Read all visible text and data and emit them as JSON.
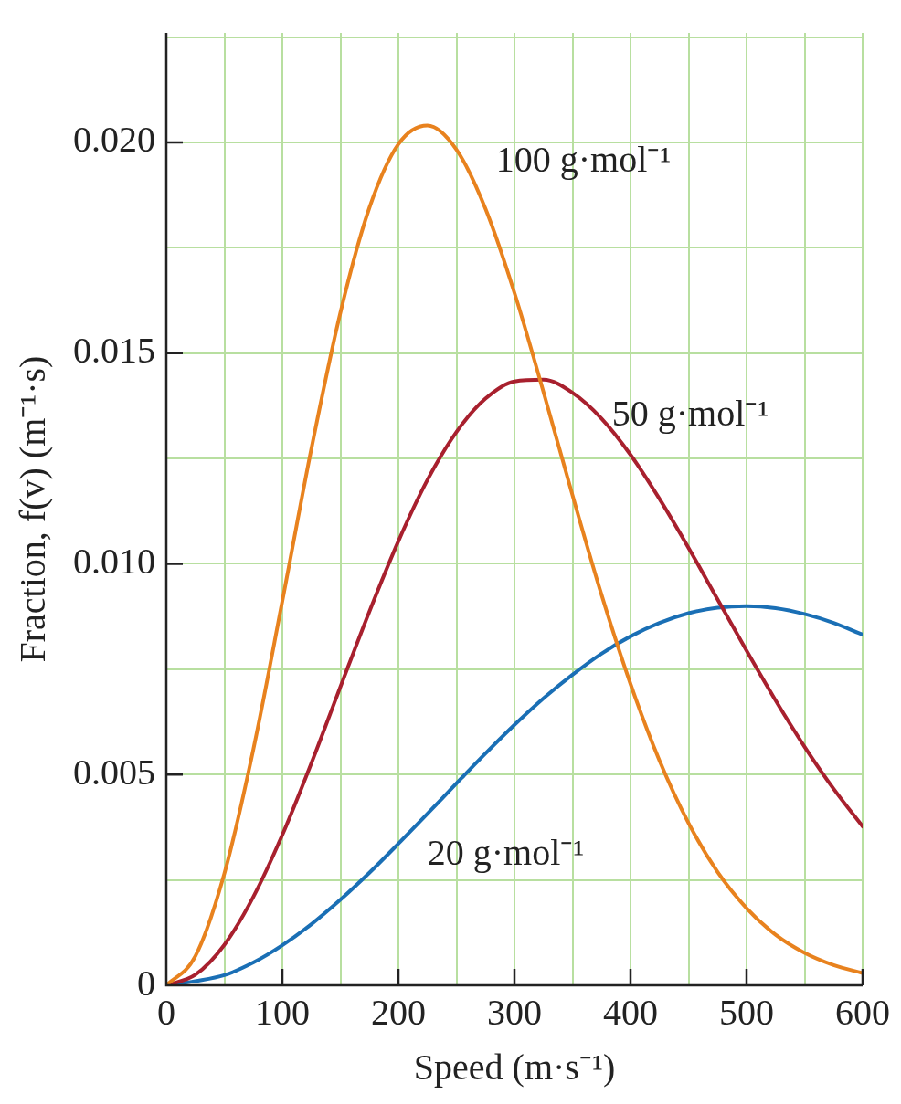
{
  "chart_data": {
    "type": "line",
    "xlabel": "Speed (m·s⁻¹)",
    "ylabel": "Fraction, f(v) (m⁻¹·s)",
    "x": [
      0,
      25,
      50,
      75,
      100,
      125,
      150,
      175,
      200,
      225,
      250,
      275,
      300,
      325,
      350,
      375,
      400,
      425,
      450,
      475,
      500,
      525,
      550,
      575,
      600
    ],
    "series": [
      {
        "name": "100 g·mol⁻¹",
        "color": "#e8821e",
        "values": [
          0,
          0.00069,
          0.00265,
          0.0056,
          0.00912,
          0.01273,
          0.01596,
          0.01845,
          0.01996,
          0.0204,
          0.01983,
          0.01843,
          0.01643,
          0.01408,
          0.01163,
          0.00927,
          0.00715,
          0.00533,
          0.00385,
          0.00269,
          0.00183,
          0.0012,
          0.00077,
          0.00048,
          0.00029
        ]
      },
      {
        "name": "50 g·mol⁻¹",
        "color": "#a8202e",
        "values": [
          0,
          0.00025,
          0.00096,
          0.0021,
          0.00357,
          0.00527,
          0.00708,
          0.00887,
          0.01054,
          0.01199,
          0.01313,
          0.01392,
          0.01433,
          0.01437,
          0.01406,
          0.01345,
          0.01259,
          0.01154,
          0.01038,
          0.00916,
          0.00794,
          0.00676,
          0.00566,
          0.00466,
          0.00377
        ]
      },
      {
        "name": "20 g·mol⁻¹",
        "color": "#1a6fb5",
        "values": [
          0,
          0.0001,
          0.00024,
          0.00054,
          0.00095,
          0.00145,
          0.00203,
          0.00267,
          0.00336,
          0.00407,
          0.00479,
          0.0055,
          0.00618,
          0.00681,
          0.00737,
          0.00787,
          0.00828,
          0.0086,
          0.00883,
          0.00896,
          0.009,
          0.00895,
          0.00881,
          0.0086,
          0.00832
        ]
      }
    ],
    "xlim": [
      0,
      600
    ],
    "xticks": [
      0,
      {
        "value": 50,
        "label": null
      },
      100,
      {
        "value": 150,
        "label": null
      },
      200,
      {
        "value": 250,
        "label": null
      },
      300,
      {
        "value": 350,
        "label": null
      },
      400,
      {
        "value": 450,
        "label": null
      },
      500,
      {
        "value": 550,
        "label": null
      },
      600
    ],
    "ylim": [
      0,
      0.0226
    ],
    "yticks": [
      0,
      {
        "value": 0.0025,
        "label": null
      },
      {
        "value": 0.005,
        "label": "0.005"
      },
      {
        "value": 0.0075,
        "label": null
      },
      {
        "value": 0.01,
        "label": "0.010"
      },
      {
        "value": 0.0125,
        "label": null
      },
      {
        "value": 0.015,
        "label": "0.015"
      },
      {
        "value": 0.0175,
        "label": null
      },
      {
        "value": 0.02,
        "label": "0.020"
      },
      {
        "value": 0.0225,
        "label": null
      }
    ],
    "grid": true,
    "legend": false,
    "marker": "none",
    "line_style": "solid"
  }
}
